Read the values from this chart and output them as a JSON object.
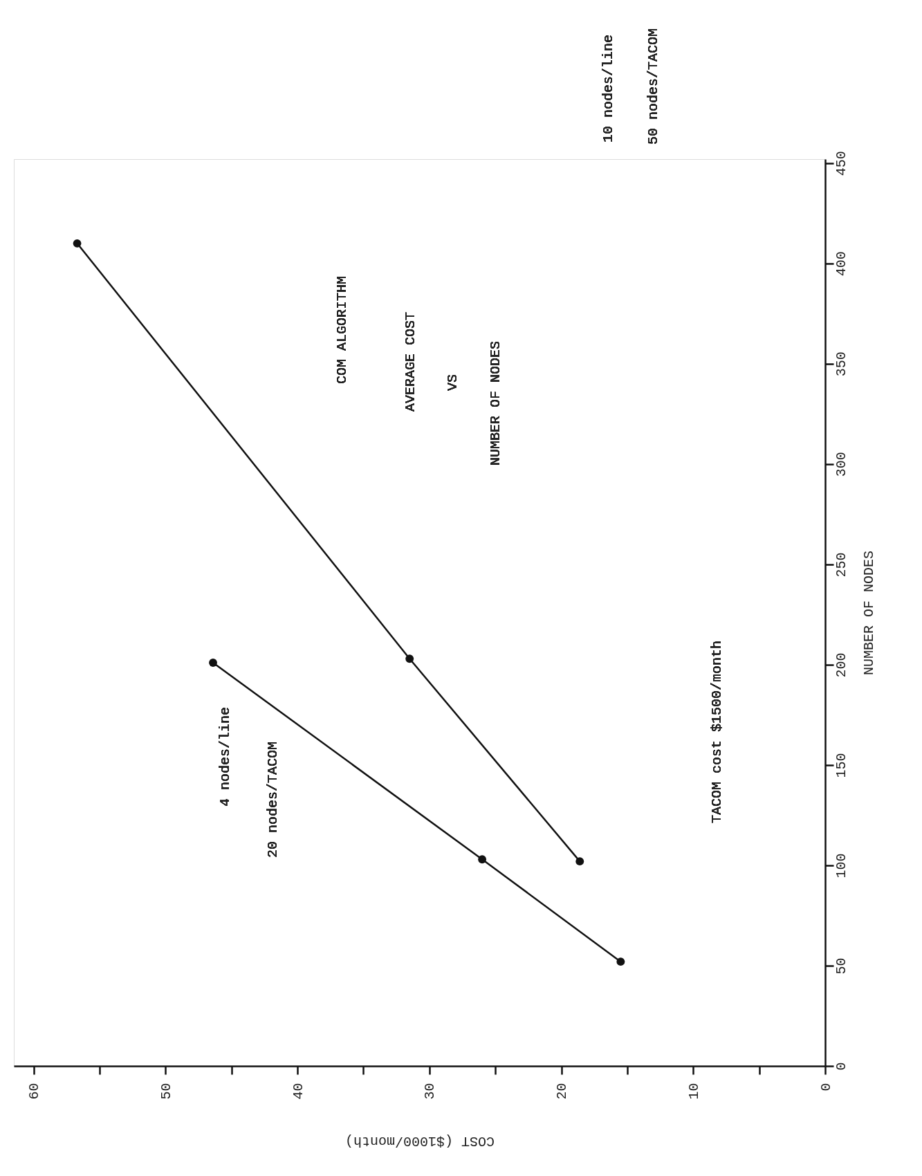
{
  "chart_data": {
    "type": "line",
    "title": "COM ALGORITHM",
    "xlabel": "COST ($1000/month)",
    "ylabel": "NUMBER OF NODES",
    "ylim": [
      0,
      452
    ],
    "yticks": [
      0,
      50,
      100,
      150,
      200,
      250,
      300,
      350,
      400,
      450
    ],
    "xlim": [
      61.5,
      0
    ],
    "xticks": [
      0,
      {
        "value": 5,
        "label": null
      },
      10,
      {
        "value": 15,
        "label": null
      },
      20,
      {
        "value": 25,
        "label": null
      },
      30,
      {
        "value": 35,
        "label": null
      },
      40,
      {
        "value": 45,
        "label": null
      },
      50,
      {
        "value": 55,
        "label": null
      },
      60
    ],
    "series": [
      {
        "color": "#111111",
        "x": [
          15.5,
          26,
          46.4
        ],
        "values": [
          52,
          103,
          201
        ]
      },
      {
        "color": "#111111",
        "x": [
          18.6,
          31.5,
          56.7
        ],
        "values": [
          102,
          203,
          410
        ]
      }
    ],
    "annotations": [
      "AVERAGE COST",
      "VS",
      "NUMBER OF NODES",
      "10 nodes/line",
      "50 nodes/TACOM",
      "4 nodes/line",
      "20 nodes/TACOM",
      "TACOM cost $1500/month"
    ],
    "marker": "circle",
    "line_style": "solid",
    "grid": false
  }
}
